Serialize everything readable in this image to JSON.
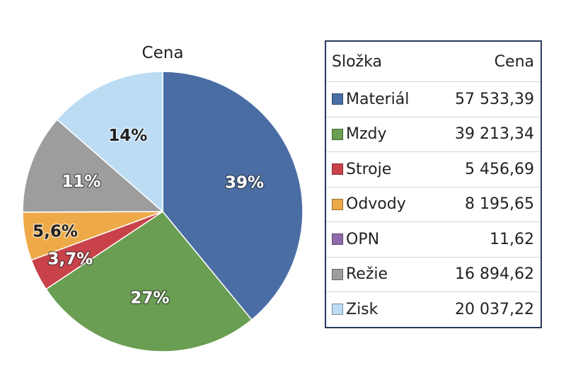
{
  "chart_data": {
    "type": "pie",
    "title": "Cena",
    "series": [
      {
        "name": "Materiál",
        "value": 57533.39,
        "value_text": "57 533,39",
        "label": "39%",
        "color": "#4a6ea4",
        "label_color": "#ffffff"
      },
      {
        "name": "Mzdy",
        "value": 39213.34,
        "value_text": "39 213,34",
        "label": "27%",
        "color": "#6a9e52",
        "label_color": "#ffffff"
      },
      {
        "name": "Stroje",
        "value": 5456.69,
        "value_text": "5 456,69",
        "label": "3,7%",
        "color": "#c9424a",
        "label_color": "#ffffff"
      },
      {
        "name": "Odvody",
        "value": 8195.65,
        "value_text": "8 195,65",
        "label": "5,6%",
        "color": "#eeaa48",
        "label_color": "#222222"
      },
      {
        "name": "OPN",
        "value": 11.62,
        "value_text": "11,62",
        "label": "",
        "color": "#8e6aaa",
        "label_color": "#ffffff"
      },
      {
        "name": "Režie",
        "value": 16894.62,
        "value_text": "16 894,62",
        "label": "11%",
        "color": "#9d9d9d",
        "label_color": "#ffffff"
      },
      {
        "name": "Zisk",
        "value": 20037.22,
        "value_text": "20 037,22",
        "label": "14%",
        "color": "#bcdcf4",
        "label_color": "#222222"
      }
    ]
  },
  "legend": {
    "header_name": "Složka",
    "header_value": "Cena"
  }
}
